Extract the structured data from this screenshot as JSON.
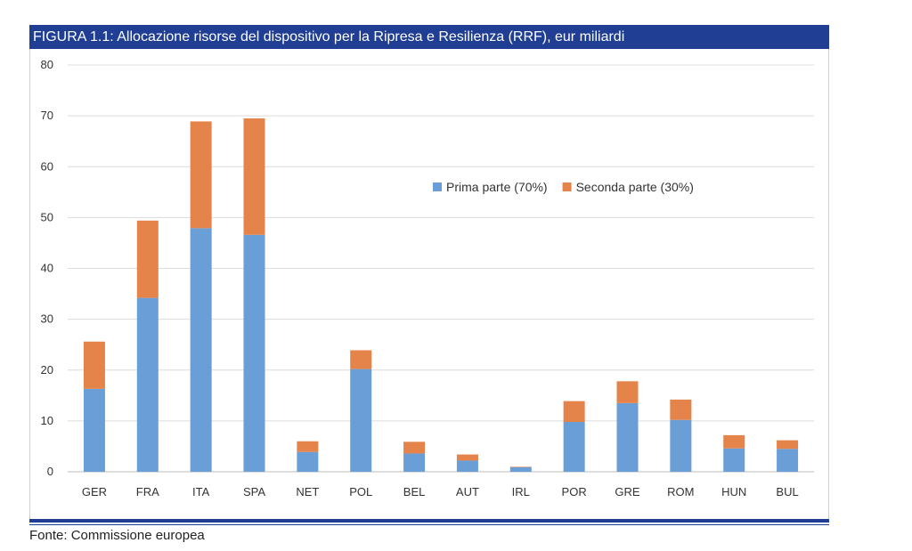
{
  "title": "FIGURA 1.1: Allocazione risorse del dispositivo per la Ripresa e Resilienza (RRF), eur miliardi",
  "source": "Fonte: Commissione europea",
  "chart_data": {
    "type": "bar",
    "stacked": true,
    "categories": [
      "GER",
      "FRA",
      "ITA",
      "SPA",
      "NET",
      "POL",
      "BEL",
      "AUT",
      "IRL",
      "POR",
      "GRE",
      "ROM",
      "HUN",
      "BUL"
    ],
    "series": [
      {
        "name": "Prima parte (70%)",
        "color": "#6a9ed6",
        "values": [
          16.3,
          34.2,
          47.9,
          46.6,
          3.9,
          20.2,
          3.6,
          2.2,
          0.9,
          9.8,
          13.5,
          10.2,
          4.6,
          4.5
        ]
      },
      {
        "name": "Seconda parte (30%)",
        "color": "#e5844a",
        "values": [
          9.3,
          15.2,
          21.0,
          22.9,
          2.1,
          3.7,
          2.3,
          1.2,
          0.1,
          4.1,
          4.3,
          4.0,
          2.6,
          1.7
        ]
      }
    ],
    "ylim": [
      0,
      80
    ],
    "yticks": [
      0,
      10,
      20,
      30,
      40,
      50,
      60,
      70,
      80
    ],
    "grid": true,
    "legend_position": "top-right",
    "xlabel": "",
    "ylabel": ""
  }
}
